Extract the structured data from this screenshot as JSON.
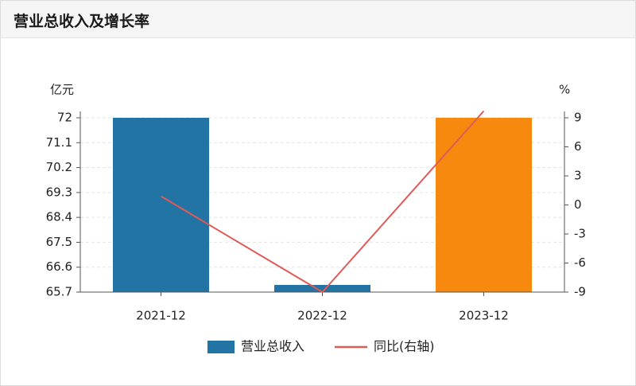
{
  "header": {
    "title": "营业总收入及增长率"
  },
  "colors": {
    "bar_default": "#2274a5",
    "bar_highlight": "#f7890f",
    "line": "#e05a57",
    "grid": "#e3e3e3",
    "axis": "#555555"
  },
  "chart_data": {
    "type": "bar",
    "categories": [
      "2021-12",
      "2022-12",
      "2023-12"
    ],
    "series": [
      {
        "name": "营业总收入",
        "type": "bar",
        "axis": "left",
        "values": [
          72.0,
          65.7,
          72.0
        ],
        "colors": [
          "#2274a5",
          "#2274a5",
          "#f7890f"
        ]
      },
      {
        "name": "同比(右轴)",
        "type": "line",
        "axis": "right",
        "values": [
          0.9,
          -9.0,
          9.7
        ]
      }
    ],
    "ylabel_left": "亿元",
    "ylabel_right": "%",
    "ylim_left": [
      65.7,
      72
    ],
    "yticks_left": [
      "72",
      "71.1",
      "70.2",
      "69.3",
      "68.4",
      "67.5",
      "66.6",
      "65.7"
    ],
    "ylim_right": [
      -9,
      9
    ],
    "yticks_right": [
      "9",
      "6",
      "3",
      "0",
      "-3",
      "-6",
      "-9"
    ],
    "grid": true,
    "legend_position": "bottom"
  }
}
